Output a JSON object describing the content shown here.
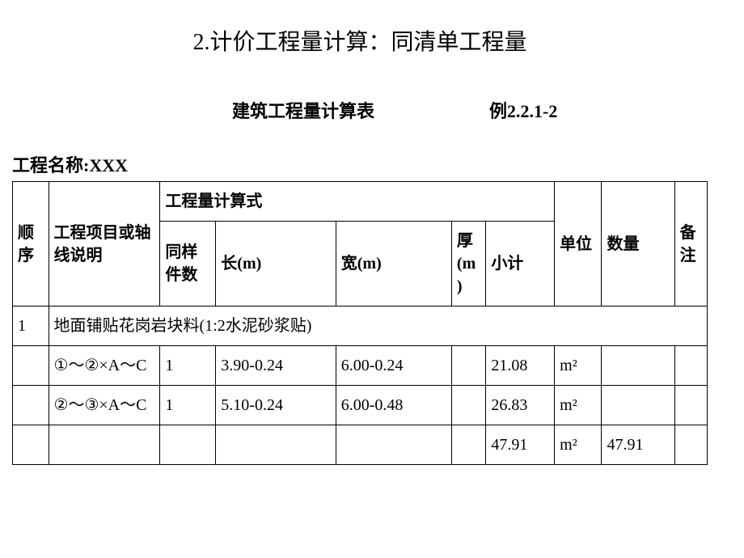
{
  "title": "2.计价工程量计算：同清单工程量",
  "table_title": "建筑工程量计算表",
  "example_no": "例2.2.1-2",
  "project_label": "工程名称:XXX",
  "headers": {
    "seq": "顺序",
    "proj": "工程项目或轴线说明",
    "calc": "工程量计算式",
    "same": "同样件数",
    "len": "长(m)",
    "wid": "宽(m)",
    "thk": "厚(m)",
    "sub": "小计",
    "unit": "单位",
    "qty": "数量",
    "note": "备注"
  },
  "rows": [
    {
      "seq": "1",
      "proj": "地面铺贴花岗岩块料(1:2水泥砂浆贴)",
      "same": "",
      "len": "",
      "wid": "",
      "thk": "",
      "sub": "",
      "unit": "",
      "qty": "",
      "note": ""
    },
    {
      "seq": "",
      "proj": "①～②×A～C",
      "same": "1",
      "len": "3.90-0.24",
      "wid": "6.00-0.24",
      "thk": "",
      "sub": "21.08",
      "unit": "m²",
      "qty": "",
      "note": ""
    },
    {
      "seq": "",
      "proj": "②～③×A～C",
      "same": "1",
      "len": "5.10-0.24",
      "wid": "6.00-0.48",
      "thk": "",
      "sub": "26.83",
      "unit": "m²",
      "qty": "",
      "note": ""
    },
    {
      "seq": "",
      "proj": "",
      "same": "",
      "len": "",
      "wid": "",
      "thk": "",
      "sub": "47.91",
      "unit": "m²",
      "qty": "47.91",
      "note": ""
    }
  ]
}
